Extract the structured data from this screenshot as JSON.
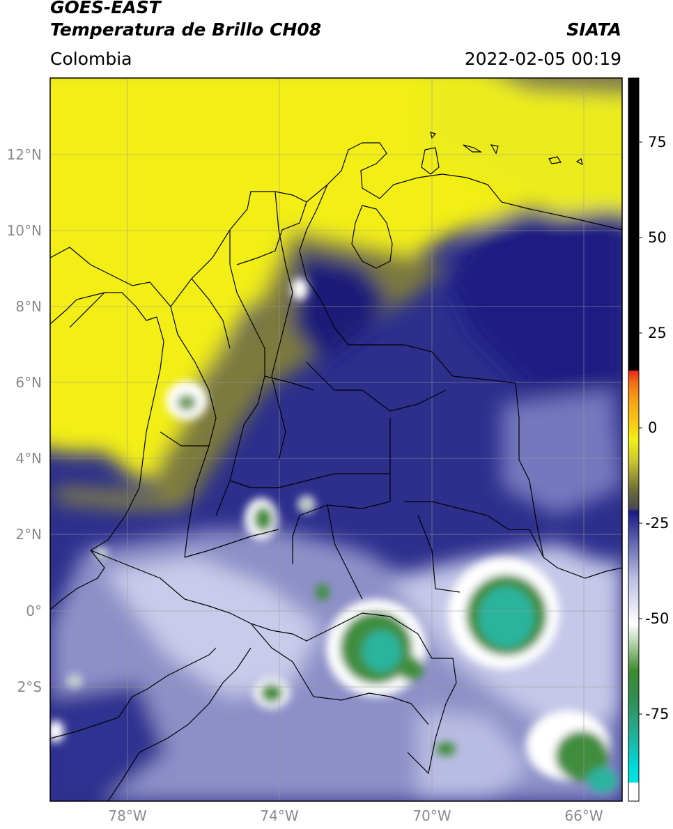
{
  "header": {
    "satellite": "GOES-EAST",
    "product": "Temperatura de Brillo CH08",
    "region": "Colombia",
    "source": "SIATA",
    "datetime": "2022-02-05 00:19"
  },
  "map": {
    "lat_labels": [
      "12°N",
      "10°N",
      "8°N",
      "6°N",
      "4°N",
      "2°N",
      "0°",
      "2°S"
    ],
    "lon_labels": [
      "78°W",
      "74°W",
      "70°W",
      "66°W"
    ]
  },
  "colorbar": {
    "tick_labels": [
      "75",
      "50",
      "25",
      "0",
      "-25",
      "-50",
      "-75"
    ],
    "colors": {
      "warm_black": "#000000",
      "red": "#e8261a",
      "orange": "#f59a12",
      "yellow": "#f4f016",
      "olive": "#6e6c38",
      "navy": "#1a1a84",
      "lavender": "#b8bce2",
      "white": "#ffffff",
      "green": "#3f8e3c",
      "teal": "#2bb49e",
      "cyan": "#00e5e5"
    }
  }
}
